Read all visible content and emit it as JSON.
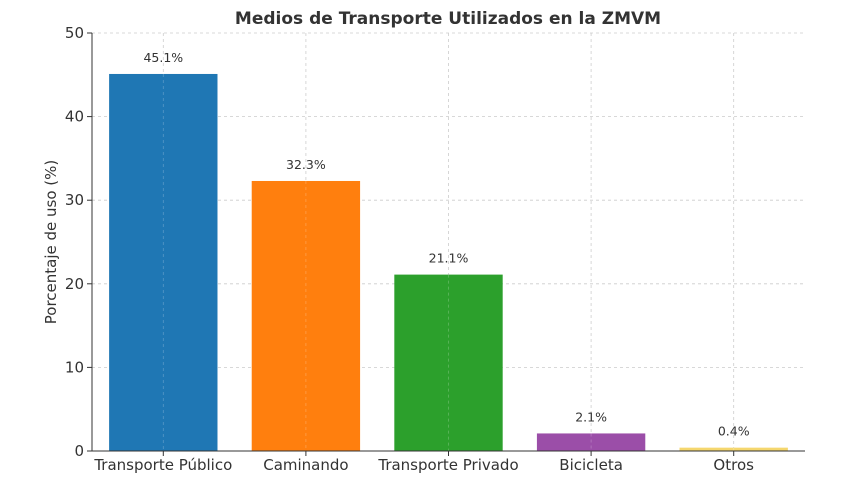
{
  "chart_data": {
    "type": "bar",
    "title": "Medios de Transporte Utilizados en la ZMVM",
    "xlabel": "",
    "ylabel": "Porcentaje de uso (%)",
    "ylim": [
      0,
      50
    ],
    "yticks": [
      0,
      10,
      20,
      30,
      40,
      50
    ],
    "grid": true,
    "categories": [
      "Transporte Público",
      "Caminando",
      "Transporte Privado",
      "Bicicleta",
      "Otros"
    ],
    "values": [
      45.1,
      32.3,
      21.1,
      2.1,
      0.4
    ],
    "data_labels": [
      "45.1%",
      "32.3%",
      "21.1%",
      "2.1%",
      "0.4%"
    ],
    "colors": [
      "#1f77b4",
      "#ff7f0e",
      "#2ca02c",
      "#9b4ea8",
      "#f5d76e"
    ]
  }
}
